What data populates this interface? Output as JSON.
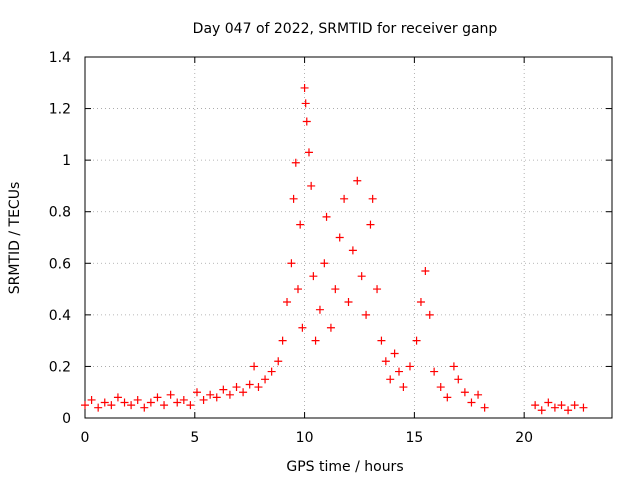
{
  "chart_data": {
    "type": "scatter",
    "title": "Day 047 of 2022, SRMTID for receiver ganp",
    "xlabel": "GPS time / hours",
    "ylabel": "SRMTID / TECUs",
    "xlim": [
      0,
      24
    ],
    "ylim": [
      0,
      1.4
    ],
    "xticks": [
      0,
      5,
      10,
      15,
      20
    ],
    "yticks": [
      0,
      0.2,
      0.4,
      0.6,
      0.8,
      1,
      1.2,
      1.4
    ],
    "xtick_labels": [
      "0",
      "5",
      "10",
      "15",
      "20"
    ],
    "ytick_labels": [
      "0",
      "0.2",
      "0.4",
      "0.6",
      "0.8",
      "1",
      "1.2",
      "1.4"
    ],
    "grid": true,
    "marker": "+",
    "series": [
      {
        "name": "SRMTID",
        "color": "#ff0000",
        "points": [
          [
            0.0,
            0.05
          ],
          [
            0.3,
            0.07
          ],
          [
            0.6,
            0.04
          ],
          [
            0.9,
            0.06
          ],
          [
            1.2,
            0.05
          ],
          [
            1.5,
            0.08
          ],
          [
            1.8,
            0.06
          ],
          [
            2.1,
            0.05
          ],
          [
            2.4,
            0.07
          ],
          [
            2.7,
            0.04
          ],
          [
            3.0,
            0.06
          ],
          [
            3.3,
            0.08
          ],
          [
            3.6,
            0.05
          ],
          [
            3.9,
            0.09
          ],
          [
            4.2,
            0.06
          ],
          [
            4.5,
            0.07
          ],
          [
            4.8,
            0.05
          ],
          [
            5.1,
            0.1
          ],
          [
            5.4,
            0.07
          ],
          [
            5.7,
            0.09
          ],
          [
            6.0,
            0.08
          ],
          [
            6.3,
            0.11
          ],
          [
            6.6,
            0.09
          ],
          [
            6.9,
            0.12
          ],
          [
            7.2,
            0.1
          ],
          [
            7.5,
            0.13
          ],
          [
            7.7,
            0.2
          ],
          [
            7.9,
            0.12
          ],
          [
            8.2,
            0.15
          ],
          [
            8.5,
            0.18
          ],
          [
            8.8,
            0.22
          ],
          [
            9.0,
            0.3
          ],
          [
            9.2,
            0.45
          ],
          [
            9.4,
            0.6
          ],
          [
            9.5,
            0.85
          ],
          [
            9.6,
            0.99
          ],
          [
            9.7,
            0.5
          ],
          [
            9.8,
            0.75
          ],
          [
            9.9,
            0.35
          ],
          [
            10.0,
            1.28
          ],
          [
            10.05,
            1.22
          ],
          [
            10.1,
            1.15
          ],
          [
            10.2,
            1.03
          ],
          [
            10.3,
            0.9
          ],
          [
            10.4,
            0.55
          ],
          [
            10.5,
            0.3
          ],
          [
            10.7,
            0.42
          ],
          [
            10.9,
            0.6
          ],
          [
            11.0,
            0.78
          ],
          [
            11.2,
            0.35
          ],
          [
            11.4,
            0.5
          ],
          [
            11.6,
            0.7
          ],
          [
            11.8,
            0.85
          ],
          [
            12.0,
            0.45
          ],
          [
            12.2,
            0.65
          ],
          [
            12.4,
            0.92
          ],
          [
            12.6,
            0.55
          ],
          [
            12.8,
            0.4
          ],
          [
            13.0,
            0.75
          ],
          [
            13.1,
            0.85
          ],
          [
            13.3,
            0.5
          ],
          [
            13.5,
            0.3
          ],
          [
            13.7,
            0.22
          ],
          [
            13.9,
            0.15
          ],
          [
            14.1,
            0.25
          ],
          [
            14.3,
            0.18
          ],
          [
            14.5,
            0.12
          ],
          [
            14.8,
            0.2
          ],
          [
            15.1,
            0.3
          ],
          [
            15.3,
            0.45
          ],
          [
            15.5,
            0.57
          ],
          [
            15.7,
            0.4
          ],
          [
            15.9,
            0.18
          ],
          [
            16.2,
            0.12
          ],
          [
            16.5,
            0.08
          ],
          [
            16.8,
            0.2
          ],
          [
            17.0,
            0.15
          ],
          [
            17.3,
            0.1
          ],
          [
            17.6,
            0.06
          ],
          [
            17.9,
            0.09
          ],
          [
            18.2,
            0.04
          ],
          [
            20.5,
            0.05
          ],
          [
            20.8,
            0.03
          ],
          [
            21.1,
            0.06
          ],
          [
            21.4,
            0.04
          ],
          [
            21.7,
            0.05
          ],
          [
            22.0,
            0.03
          ],
          [
            22.3,
            0.05
          ],
          [
            22.7,
            0.04
          ]
        ]
      }
    ]
  }
}
